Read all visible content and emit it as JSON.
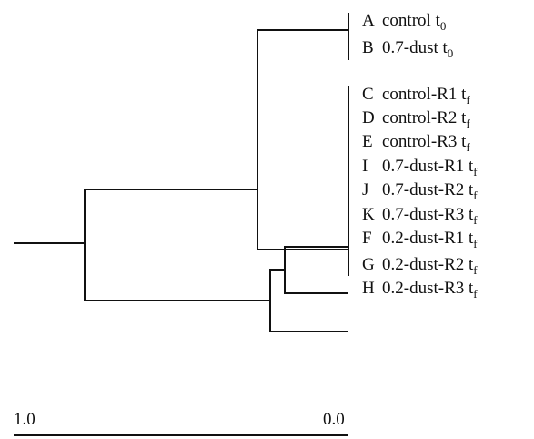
{
  "leaves": [
    {
      "letter": "A",
      "name": "control t",
      "sub": "0"
    },
    {
      "letter": "B",
      "name": "0.7-dust t",
      "sub": "0"
    },
    {
      "letter": "C",
      "name": "control-R1 t",
      "sub": "f"
    },
    {
      "letter": "D",
      "name": "control-R2 t",
      "sub": "f"
    },
    {
      "letter": "E",
      "name": "control-R3 t",
      "sub": "f"
    },
    {
      "letter": "I",
      "name": "0.7-dust-R1 t",
      "sub": "f"
    },
    {
      "letter": "J",
      "name": "0.7-dust-R2 t",
      "sub": "f"
    },
    {
      "letter": "K",
      "name": "0.7-dust-R3 t",
      "sub": "f"
    },
    {
      "letter": "F",
      "name": "0.2-dust-R1 t",
      "sub": "f"
    },
    {
      "letter": "G",
      "name": "0.2-dust-R2 t",
      "sub": "f"
    },
    {
      "letter": "H",
      "name": "0.2-dust-R3 t",
      "sub": "f"
    }
  ],
  "scale": {
    "left": "1.0",
    "right": "0.0"
  }
}
